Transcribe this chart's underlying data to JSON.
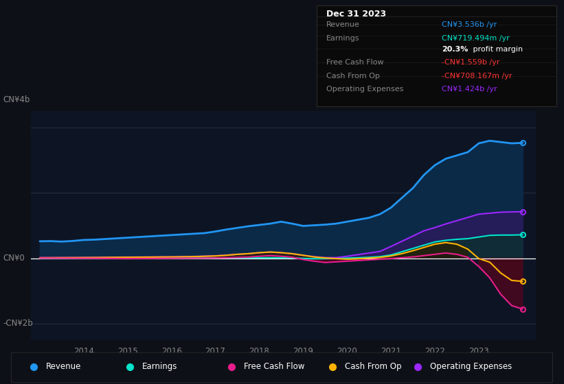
{
  "bg_color": "#0d1117",
  "plot_bg_color": "#0d1525",
  "grid_color": "#2a3a4a",
  "zero_line_color": "#ffffff",
  "ylabel_4b": "CN¥4b",
  "ylabel_0": "CN¥0",
  "ylabel_neg2b": "-CN¥2b",
  "ylim": [
    -2500000000.0,
    4500000000.0
  ],
  "xlim": [
    2012.8,
    2024.3
  ],
  "years": [
    2013.0,
    2013.25,
    2013.5,
    2013.75,
    2014.0,
    2014.25,
    2014.5,
    2014.75,
    2015.0,
    2015.25,
    2015.5,
    2015.75,
    2016.0,
    2016.25,
    2016.5,
    2016.75,
    2017.0,
    2017.25,
    2017.5,
    2017.75,
    2018.0,
    2018.25,
    2018.5,
    2018.75,
    2019.0,
    2019.25,
    2019.5,
    2019.75,
    2020.0,
    2020.25,
    2020.5,
    2020.75,
    2021.0,
    2021.25,
    2021.5,
    2021.75,
    2022.0,
    2022.25,
    2022.5,
    2022.75,
    2023.0,
    2023.25,
    2023.5,
    2023.75,
    2024.0
  ],
  "revenue": [
    520000000.0,
    525000000.0,
    510000000.0,
    530000000.0,
    560000000.0,
    570000000.0,
    590000000.0,
    610000000.0,
    630000000.0,
    650000000.0,
    670000000.0,
    690000000.0,
    710000000.0,
    730000000.0,
    750000000.0,
    770000000.0,
    820000000.0,
    880000000.0,
    930000000.0,
    980000000.0,
    1020000000.0,
    1060000000.0,
    1120000000.0,
    1060000000.0,
    990000000.0,
    1010000000.0,
    1030000000.0,
    1060000000.0,
    1120000000.0,
    1180000000.0,
    1240000000.0,
    1350000000.0,
    1550000000.0,
    1850000000.0,
    2150000000.0,
    2550000000.0,
    2850000000.0,
    3050000000.0,
    3150000000.0,
    3250000000.0,
    3520000000.0,
    3600000000.0,
    3560000000.0,
    3520000000.0,
    3536000000.0
  ],
  "earnings": [
    5000000.0,
    5000000.0,
    4000000.0,
    4000000.0,
    4000000.0,
    4000000.0,
    5000000.0,
    5000000.0,
    5000000.0,
    6000000.0,
    6000000.0,
    7000000.0,
    7000000.0,
    8000000.0,
    8000000.0,
    9000000.0,
    10000000.0,
    11000000.0,
    12000000.0,
    13000000.0,
    14000000.0,
    15000000.0,
    14000000.0,
    13000000.0,
    -5000000.0,
    -15000000.0,
    -10000000.0,
    -5000000.0,
    5000000.0,
    15000000.0,
    30000000.0,
    50000000.0,
    100000000.0,
    200000000.0,
    300000000.0,
    400000000.0,
    500000000.0,
    550000000.0,
    580000000.0,
    600000000.0,
    650000000.0,
    700000000.0,
    710000000.0,
    710000000.0,
    719000000.0
  ],
  "free_cash_flow": [
    5000000.0,
    3000000.0,
    1000000.0,
    -1000000.0,
    -2000000.0,
    -3000000.0,
    -5000000.0,
    -8000000.0,
    -10000000.0,
    -8000000.0,
    -6000000.0,
    -4000000.0,
    -2000000.0,
    0.0,
    2000000.0,
    4000000.0,
    8000000.0,
    15000000.0,
    25000000.0,
    35000000.0,
    60000000.0,
    80000000.0,
    60000000.0,
    30000000.0,
    -40000000.0,
    -90000000.0,
    -130000000.0,
    -110000000.0,
    -90000000.0,
    -70000000.0,
    -50000000.0,
    -30000000.0,
    -10000000.0,
    15000000.0,
    40000000.0,
    80000000.0,
    120000000.0,
    160000000.0,
    120000000.0,
    30000000.0,
    -250000000.0,
    -600000000.0,
    -1100000000.0,
    -1450000000.0,
    -1559000000.0
  ],
  "cash_from_op": [
    15000000.0,
    16000000.0,
    17000000.0,
    18000000.0,
    20000000.0,
    22000000.0,
    25000000.0,
    28000000.0,
    30000000.0,
    32000000.0,
    35000000.0,
    38000000.0,
    40000000.0,
    45000000.0,
    50000000.0,
    60000000.0,
    70000000.0,
    90000000.0,
    120000000.0,
    140000000.0,
    170000000.0,
    190000000.0,
    170000000.0,
    140000000.0,
    90000000.0,
    40000000.0,
    10000000.0,
    -10000000.0,
    -30000000.0,
    -15000000.0,
    5000000.0,
    25000000.0,
    70000000.0,
    140000000.0,
    230000000.0,
    330000000.0,
    430000000.0,
    480000000.0,
    430000000.0,
    280000000.0,
    -10000000.0,
    -120000000.0,
    -450000000.0,
    -680000000.0,
    -708000000.0
  ],
  "operating_expenses": [
    20000000.0,
    21000000.0,
    22000000.0,
    23000000.0,
    25000000.0,
    27000000.0,
    30000000.0,
    33000000.0,
    35000000.0,
    38000000.0,
    40000000.0,
    43000000.0,
    45000000.0,
    50000000.0,
    55000000.0,
    65000000.0,
    75000000.0,
    95000000.0,
    120000000.0,
    140000000.0,
    170000000.0,
    190000000.0,
    170000000.0,
    140000000.0,
    90000000.0,
    50000000.0,
    20000000.0,
    20000000.0,
    60000000.0,
    110000000.0,
    160000000.0,
    210000000.0,
    360000000.0,
    520000000.0,
    680000000.0,
    840000000.0,
    940000000.0,
    1050000000.0,
    1150000000.0,
    1250000000.0,
    1350000000.0,
    1380000000.0,
    1410000000.0,
    1420000000.0,
    1424000000.0
  ],
  "revenue_color": "#2196f3",
  "revenue_fill_color": "#0a2a4a",
  "earnings_color": "#00e5cc",
  "free_cash_flow_color": "#e91e8c",
  "cash_from_op_color": "#ffb300",
  "operating_expenses_color": "#9c27ff",
  "xticks": [
    2014,
    2015,
    2016,
    2017,
    2018,
    2019,
    2020,
    2021,
    2022,
    2023
  ],
  "legend_items": [
    {
      "label": "Revenue",
      "color": "#2196f3"
    },
    {
      "label": "Earnings",
      "color": "#00e5cc"
    },
    {
      "label": "Free Cash Flow",
      "color": "#e91e8c"
    },
    {
      "label": "Cash From Op",
      "color": "#ffb300"
    },
    {
      "label": "Operating Expenses",
      "color": "#9c27ff"
    }
  ],
  "tooltip": {
    "date": "Dec 31 2023",
    "revenue_val": "CN¥3.536b",
    "earnings_val": "CN¥719.494m",
    "profit_margin": "20.3%",
    "fcf_val": "-CN¥1.559b",
    "cfo_val": "-CN¥708.167m",
    "opex_val": "CN¥1.424b",
    "revenue_color": "#2196f3",
    "earnings_color": "#00e5cc",
    "fcf_color": "#ff3333",
    "cfo_color": "#ff3333",
    "opex_color": "#9c27ff"
  }
}
